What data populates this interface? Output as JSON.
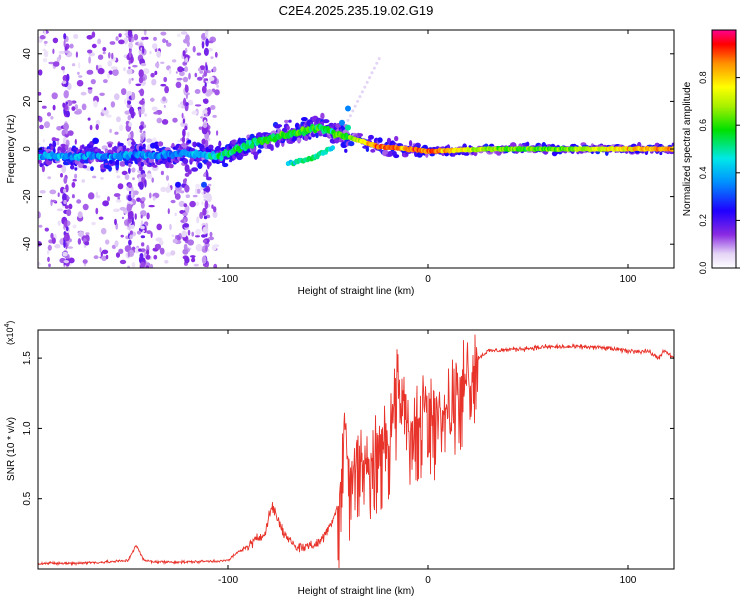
{
  "title": "C2E4.2025.235.19.02.G19",
  "chart_data": [
    {
      "type": "heatmap",
      "xlabel": "Height of straight line (km)",
      "ylabel": "Frequency (Hz)",
      "xlim": [
        -195,
        123
      ],
      "ylim": [
        -50,
        50
      ],
      "x_ticks": [
        -100,
        0,
        100
      ],
      "y_ticks": [
        -40,
        -20,
        0,
        20,
        40
      ],
      "colorbar": {
        "label": "Normalized spectral amplitude",
        "range": [
          0.0,
          1.0
        ],
        "ticks": [
          0.0,
          0.2,
          0.4,
          0.6,
          0.8
        ],
        "tick_labels": [
          "0.0",
          "0.2",
          "0.4",
          "0.6",
          "0.8"
        ]
      },
      "ridge_track": [
        {
          "x": -195,
          "freq": -3,
          "amp": 0.4
        },
        {
          "x": -160,
          "freq": -3,
          "amp": 0.35
        },
        {
          "x": -120,
          "freq": -2,
          "amp": 0.35
        },
        {
          "x": -105,
          "freq": -3,
          "amp": 0.5
        },
        {
          "x": -85,
          "freq": 3,
          "amp": 0.55
        },
        {
          "x": -70,
          "freq": 6,
          "amp": 0.6
        },
        {
          "x": -55,
          "freq": 9,
          "amp": 0.55
        },
        {
          "x": -40,
          "freq": 5,
          "amp": 0.6
        },
        {
          "x": -25,
          "freq": 1,
          "amp": 0.9
        },
        {
          "x": -10,
          "freq": 0,
          "amp": 0.85
        },
        {
          "x": 0,
          "freq": -1,
          "amp": 0.9
        },
        {
          "x": 30,
          "freq": 0,
          "amp": 0.65
        },
        {
          "x": 60,
          "freq": 0,
          "amp": 0.6
        },
        {
          "x": 90,
          "freq": 0,
          "amp": 0.75
        },
        {
          "x": 123,
          "freq": 0,
          "amp": 0.85
        }
      ],
      "secondary_track": [
        {
          "x": -70,
          "freq": -6,
          "amp": 0.45
        },
        {
          "x": -58,
          "freq": -4,
          "amp": 0.55
        },
        {
          "x": -47,
          "freq": 1,
          "amp": 0.45
        }
      ]
    },
    {
      "type": "line",
      "xlabel": "Height of straight line (km)",
      "ylabel": "SNR (10 * v/v)",
      "multiplier_label": "(x10",
      "multiplier_exponent": "4",
      "multiplier_suffix": ")",
      "xlim": [
        -195,
        123
      ],
      "ylim": [
        0,
        1.7
      ],
      "x_ticks": [
        -100,
        0,
        100
      ],
      "y_ticks": [
        0.5,
        1.0,
        1.5
      ],
      "y_tick_labels": [
        "0.5",
        "1.0",
        "1.5"
      ],
      "color": "#e8332a",
      "series": [
        {
          "name": "SNR",
          "x": [
            -195,
            -180,
            -160,
            -150,
            -146,
            -142,
            -135,
            -120,
            -100,
            -95,
            -88,
            -82,
            -78,
            -72,
            -65,
            -55,
            -50,
            -45,
            -42,
            -39,
            -35,
            -30,
            -25,
            -20,
            -15,
            -10,
            -5,
            0,
            5,
            10,
            15,
            20,
            25,
            30,
            40,
            50,
            60,
            70,
            80,
            90,
            95,
            100,
            110,
            115,
            118,
            123
          ],
          "y": [
            0.04,
            0.04,
            0.05,
            0.06,
            0.17,
            0.06,
            0.05,
            0.05,
            0.06,
            0.12,
            0.18,
            0.25,
            0.45,
            0.25,
            0.15,
            0.18,
            0.28,
            0.45,
            1.12,
            0.6,
            0.9,
            0.75,
            0.95,
            1.0,
            1.35,
            1.05,
            1.15,
            1.25,
            1.15,
            1.2,
            1.35,
            1.45,
            1.5,
            1.55,
            1.56,
            1.57,
            1.58,
            1.58,
            1.58,
            1.57,
            1.56,
            1.55,
            1.55,
            1.5,
            1.55,
            1.5
          ]
        }
      ]
    }
  ]
}
